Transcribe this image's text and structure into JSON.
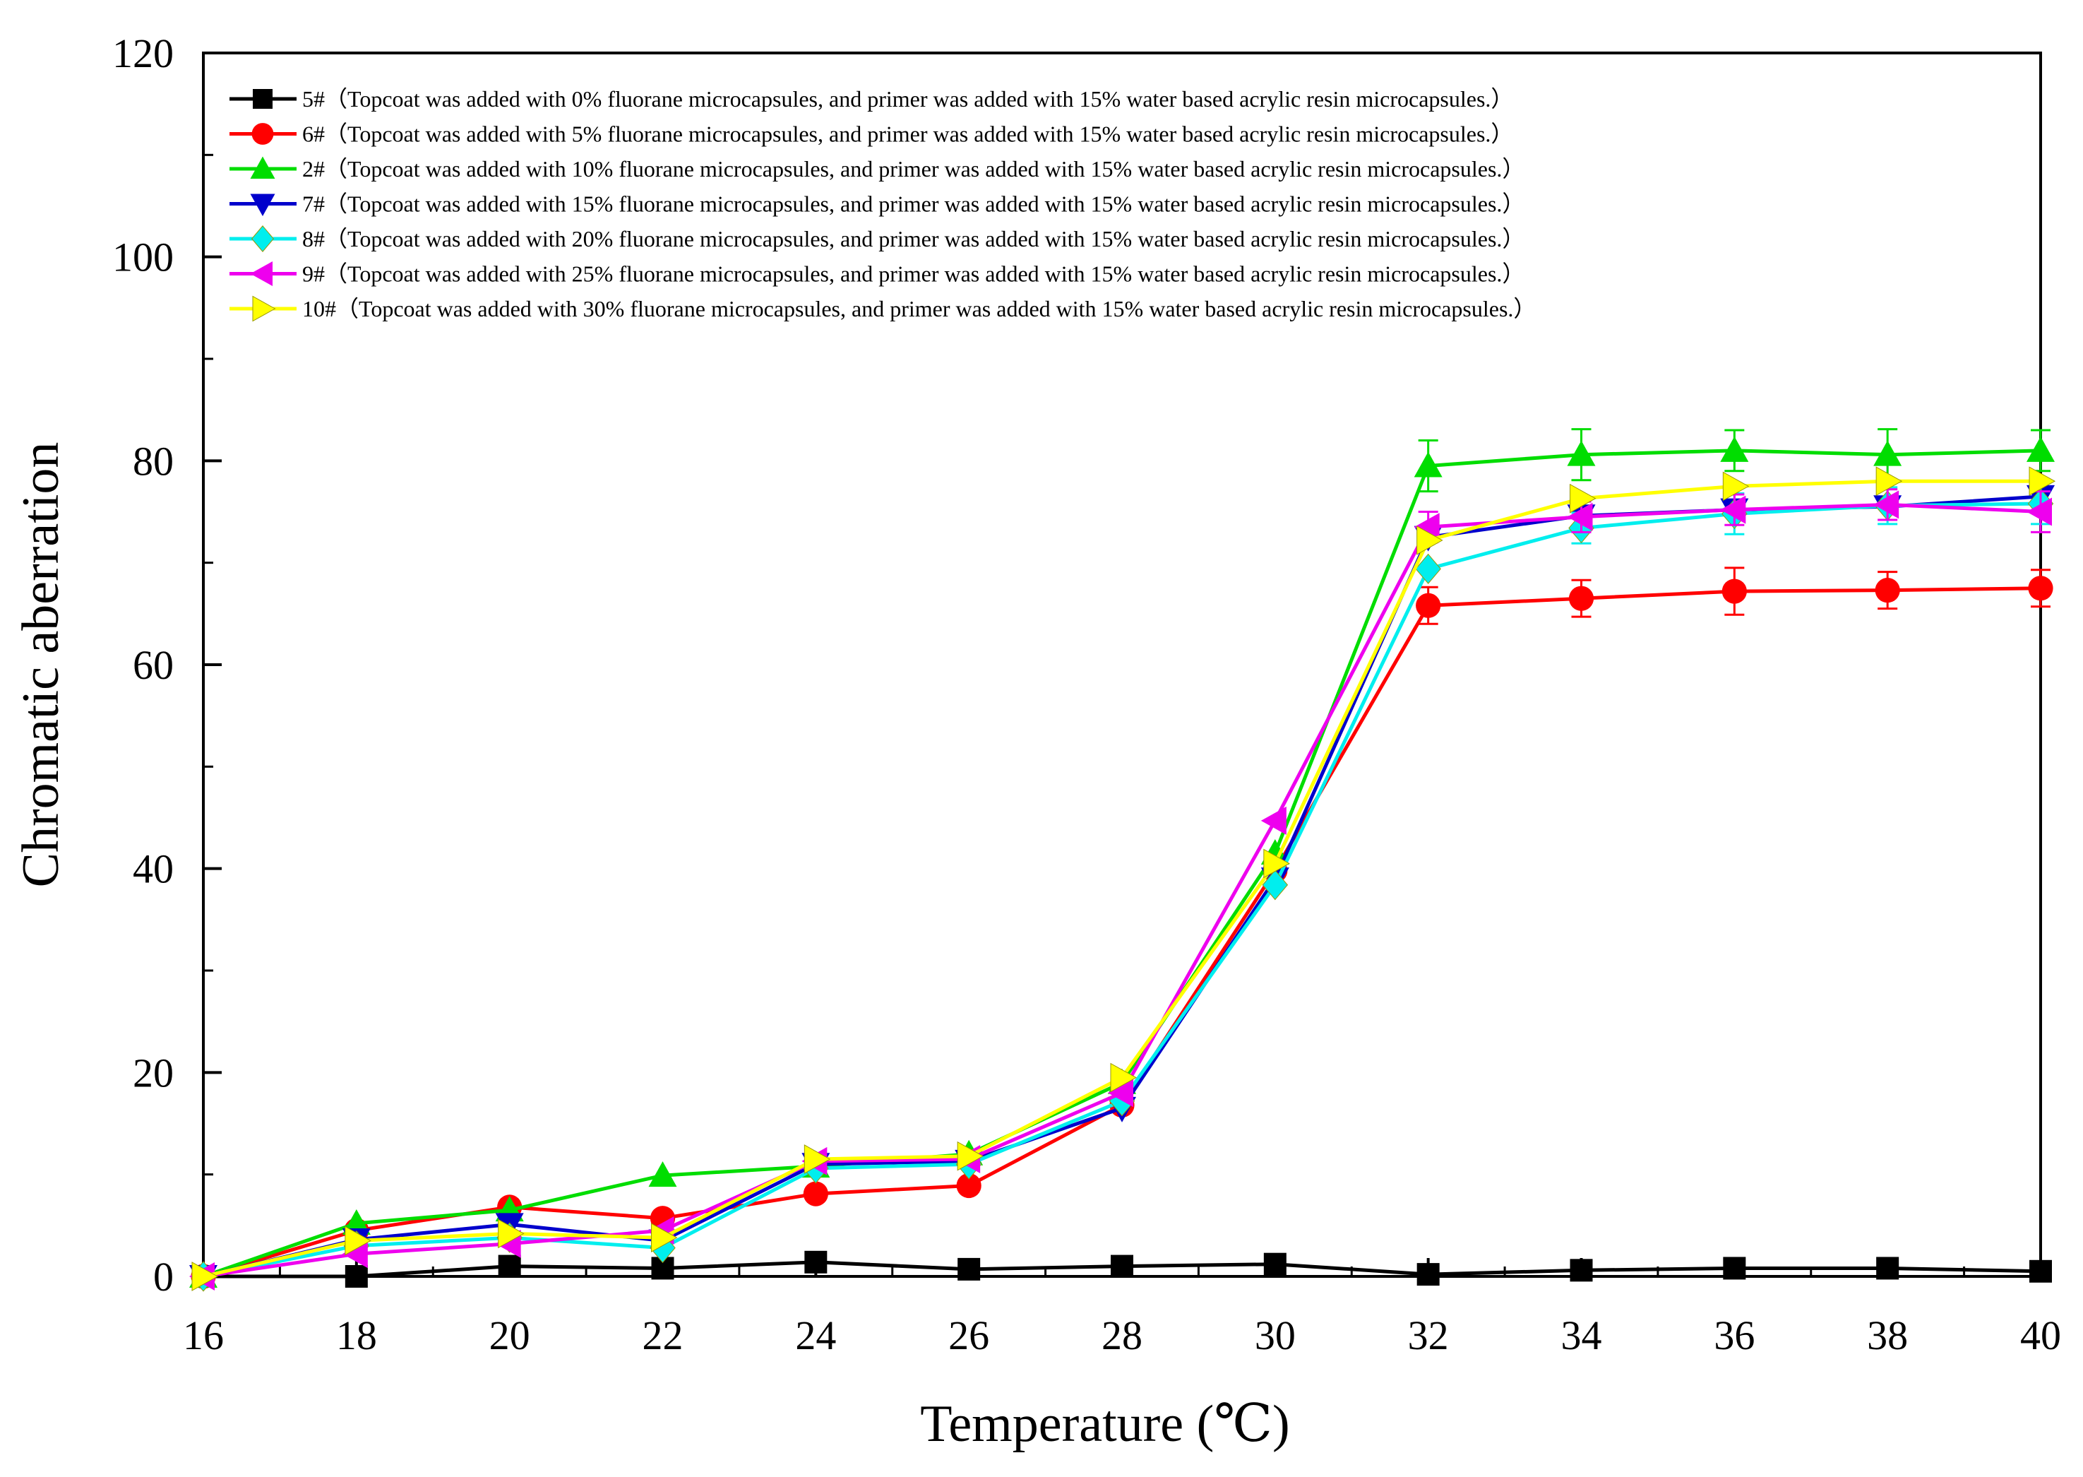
{
  "chart_data": {
    "type": "line",
    "title": "",
    "xlabel": "Temperature (℃)",
    "ylabel": "Chromatic aberration",
    "xlim": [
      16,
      40
    ],
    "ylim": [
      0,
      120
    ],
    "xticks": [
      16,
      18,
      20,
      22,
      24,
      26,
      28,
      30,
      32,
      34,
      36,
      38,
      40
    ],
    "yticks": [
      0,
      20,
      40,
      60,
      80,
      100,
      120
    ],
    "x": [
      16,
      18,
      20,
      22,
      24,
      26,
      28,
      30,
      32,
      34,
      36,
      38,
      40
    ],
    "legend_position": "top-left",
    "grid": false,
    "series": [
      {
        "name": "5#（Topcoat was added with 0% fluorane microcapsules, and primer was added with 15% water based acrylic resin microcapsules.）",
        "color": "#000000",
        "marker": "square",
        "values": [
          0,
          0,
          1.0,
          0.8,
          1.4,
          0.7,
          1.0,
          1.2,
          0.2,
          0.6,
          0.8,
          0.8,
          0.5
        ],
        "errors": [
          0,
          0,
          0,
          0,
          0,
          0,
          0,
          0,
          0,
          0,
          0,
          0,
          0
        ]
      },
      {
        "name": "6#（Topcoat was added with 5% fluorane microcapsules, and primer was added with 15% water based acrylic resin microcapsules.）",
        "color": "#ff0000",
        "marker": "circle",
        "values": [
          0,
          4.5,
          6.8,
          5.7,
          8.1,
          8.9,
          16.8,
          39.8,
          65.8,
          66.5,
          67.2,
          67.3,
          67.5
        ],
        "errors": [
          0,
          0,
          0,
          0,
          0,
          0,
          0,
          0,
          1.8,
          1.8,
          2.3,
          1.8,
          1.8
        ]
      },
      {
        "name": "2#（Topcoat was added with 10% fluorane microcapsules, and primer was added with 15% water based acrylic resin microcapsules.）",
        "color": "#00dd00",
        "marker": "triangle-up",
        "values": [
          0,
          5.2,
          6.5,
          9.9,
          10.8,
          12.0,
          19.0,
          41.5,
          79.5,
          80.6,
          81.0,
          80.6,
          81.0
        ],
        "errors": [
          0,
          0,
          0,
          0,
          0,
          0,
          0,
          0,
          2.5,
          2.5,
          2.0,
          2.5,
          2.0
        ]
      },
      {
        "name": "7#（Topcoat was added with 15% fluorane microcapsules, and primer was added with 15% water based acrylic resin microcapsules.）",
        "color": "#0000cc",
        "marker": "triangle-down",
        "values": [
          0,
          3.6,
          5.1,
          3.5,
          11.0,
          11.3,
          16.5,
          39.0,
          72.5,
          74.6,
          75.2,
          75.5,
          76.5
        ],
        "errors": [
          0,
          0,
          0,
          0,
          0,
          0,
          0,
          0,
          0,
          0,
          0,
          0,
          0
        ]
      },
      {
        "name": "8#（Topcoat was added with 20% fluorane microcapsules, and primer was added with 15% water based acrylic resin microcapsules.）",
        "color": "#00eeee",
        "marker": "diamond",
        "values": [
          0,
          3.0,
          3.8,
          2.8,
          10.6,
          11.0,
          17.2,
          38.4,
          69.4,
          73.4,
          74.8,
          75.6,
          75.8
        ],
        "errors": [
          0,
          0,
          0,
          0,
          0,
          0,
          0,
          0,
          0,
          1.5,
          2.0,
          1.8,
          2.0
        ]
      },
      {
        "name": "9#（Topcoat was added with 25% fluorane microcapsules, and primer was added with 15% water based acrylic resin microcapsules.）",
        "color": "#ee00ee",
        "marker": "triangle-left",
        "values": [
          0,
          2.2,
          3.2,
          4.5,
          11.3,
          11.5,
          18.0,
          44.7,
          73.5,
          74.5,
          75.2,
          75.7,
          75.0
        ],
        "errors": [
          0,
          0,
          0,
          0,
          0,
          0,
          0,
          0,
          1.5,
          1.5,
          1.5,
          1.5,
          2.0
        ]
      },
      {
        "name": "10#（Topcoat was added with 30% fluorane microcapsules, and primer was added with 15% water based acrylic resin microcapsules.）",
        "color": "#ffff00",
        "marker": "triangle-right",
        "values": [
          0,
          3.5,
          4.2,
          3.8,
          11.5,
          11.8,
          19.5,
          40.5,
          72.2,
          76.3,
          77.5,
          78.0,
          78.0
        ],
        "errors": [
          0,
          0,
          0,
          0,
          0,
          0,
          0,
          0,
          0,
          0,
          0,
          0,
          0
        ]
      }
    ]
  }
}
